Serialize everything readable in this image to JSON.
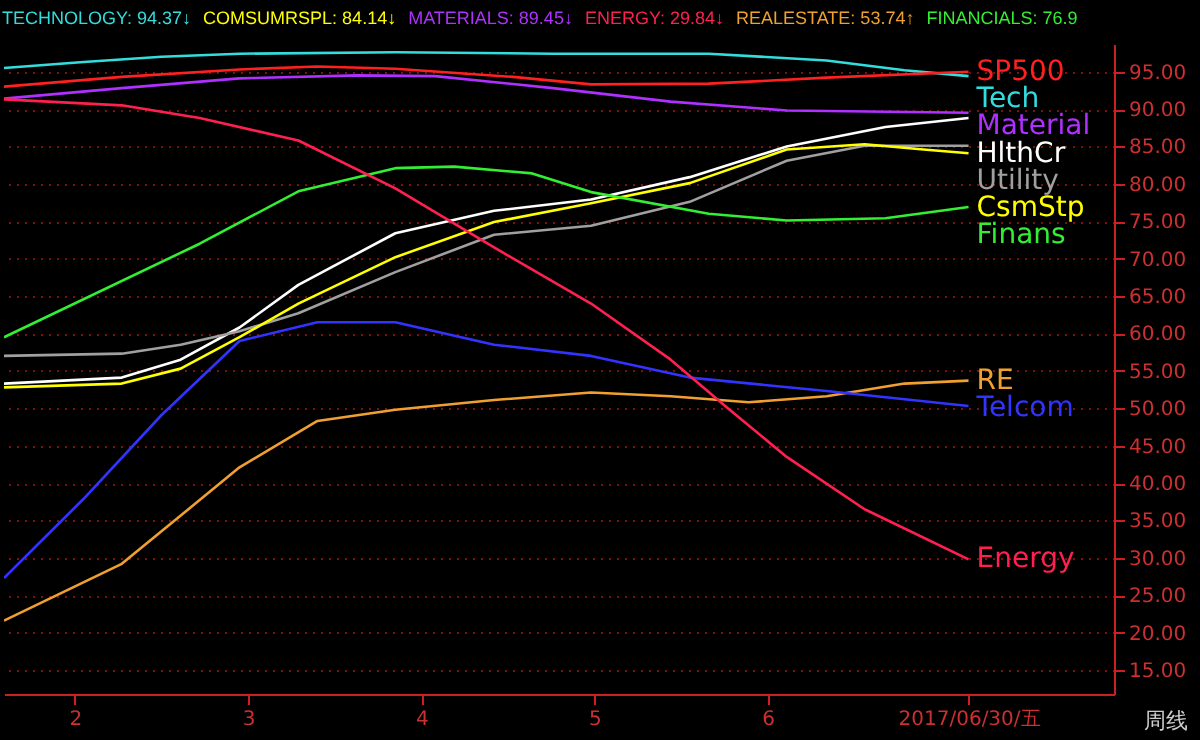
{
  "chart_data": {
    "type": "line",
    "grid": "y",
    "marker": "none",
    "xlim": [
      1.59,
      8.0
    ],
    "xticks": [
      2,
      3,
      4,
      5,
      6,
      {
        "value": 7.16,
        "label": "2017/06/30/五"
      }
    ],
    "ylim": [
      11.8,
      98.7
    ],
    "yticks": [
      {
        "value": 15,
        "label": "15.00"
      },
      {
        "value": 20,
        "label": "20.00"
      },
      {
        "value": 25,
        "label": "25.00"
      },
      {
        "value": 30,
        "label": "30.00"
      },
      {
        "value": 35,
        "label": "35.00"
      },
      {
        "value": 40,
        "label": "40.00"
      },
      {
        "value": 45,
        "label": "45.00"
      },
      {
        "value": 50,
        "label": "50.00"
      },
      {
        "value": 55,
        "label": "55.00"
      },
      {
        "value": 60,
        "label": "60.00"
      },
      {
        "value": 65,
        "label": "65.00"
      },
      {
        "value": 70,
        "label": "70.00"
      },
      {
        "value": 75,
        "label": "75.00"
      },
      {
        "value": 80,
        "label": "80.00"
      },
      {
        "value": 85,
        "label": "85.00"
      },
      {
        "value": 90,
        "label": "90.00"
      },
      {
        "value": 95,
        "label": "95.00"
      }
    ],
    "annotations": [
      "TECHNOLOGY: 94.37↓",
      "COMSUMRSPL: 84.14↓",
      "MATERIALS: 89.45↓",
      "ENERGY: 29.84↓",
      "REALESTATE: 53.74↑",
      "FINANCIALS: 76.9",
      "周线"
    ],
    "series": [
      {
        "name": "Tech",
        "color": "#33dddd",
        "x": [
          1.59,
          2.05,
          2.5,
          2.95,
          3.85,
          4.76,
          5.66,
          6.34,
          6.79,
          7.16
        ],
        "values": [
          95.5,
          96.3,
          97.0,
          97.4,
          97.6,
          97.4,
          97.4,
          96.5,
          95.2,
          94.4
        ]
      },
      {
        "name": "SP500",
        "color": "#ff2020",
        "x": [
          1.59,
          2.27,
          2.95,
          3.4,
          3.85,
          4.53,
          4.98,
          5.66,
          6.34,
          7.16
        ],
        "values": [
          93,
          94.3,
          95.3,
          95.7,
          95.4,
          94.3,
          93.3,
          93.4,
          94.2,
          95
        ]
      },
      {
        "name": "Material",
        "color": "#b030ff",
        "x": [
          1.59,
          2.27,
          2.95,
          3.63,
          4.08,
          4.76,
          5.44,
          6.11,
          7.16
        ],
        "values": [
          91.4,
          92.8,
          94.1,
          94.5,
          94.4,
          92.8,
          91.0,
          89.8,
          89.5
        ]
      },
      {
        "name": "HlthCr",
        "color": "#ffffff",
        "x": [
          1.59,
          2.27,
          2.61,
          2.95,
          3.29,
          3.85,
          4.42,
          4.98,
          5.55,
          6.11,
          6.68,
          7.16
        ],
        "values": [
          53.3,
          54.1,
          56.5,
          60.8,
          66.5,
          73.4,
          76.4,
          77.9,
          80.9,
          85,
          87.6,
          88.8
        ]
      },
      {
        "name": "Utility",
        "color": "#a0a0a0",
        "x": [
          1.59,
          2.27,
          2.61,
          2.95,
          3.29,
          3.85,
          4.42,
          4.98,
          5.55,
          6.11,
          6.56,
          7.16
        ],
        "values": [
          57,
          57.3,
          58.5,
          60.3,
          62.7,
          68.2,
          73.2,
          74.4,
          77.6,
          83.1,
          85.1,
          85.1
        ]
      },
      {
        "name": "CsmStp",
        "color": "#ffff00",
        "x": [
          1.59,
          2.27,
          2.61,
          2.95,
          3.29,
          3.85,
          4.42,
          4.98,
          5.55,
          6.11,
          6.56,
          6.9,
          7.16
        ],
        "values": [
          52.8,
          53.3,
          55.3,
          59.5,
          64,
          70.2,
          74.9,
          77.4,
          80.1,
          84.6,
          85.3,
          84.6,
          84.1
        ]
      },
      {
        "name": "Finans",
        "color": "#33ee33",
        "x": [
          1.59,
          2.72,
          3.29,
          3.85,
          4.19,
          4.64,
          4.98,
          5.66,
          6.11,
          6.68,
          7.16
        ],
        "values": [
          59.5,
          72,
          79,
          82.1,
          82.3,
          81.4,
          78.9,
          76,
          75.1,
          75.4,
          76.9
        ]
      },
      {
        "name": "RE",
        "color": "#f0a030",
        "x": [
          1.59,
          2.27,
          2.95,
          3.4,
          3.85,
          4.42,
          4.98,
          5.44,
          5.89,
          6.34,
          6.79,
          7.16
        ],
        "values": [
          21.6,
          29.2,
          42.1,
          48.3,
          49.8,
          51.1,
          52.1,
          51.6,
          50.8,
          51.6,
          53.3,
          53.7
        ]
      },
      {
        "name": "Telcom",
        "color": "#3333ff",
        "x": [
          1.59,
          2.05,
          2.5,
          2.95,
          3.4,
          3.85,
          4.42,
          4.98,
          5.55,
          6.34,
          7.16
        ],
        "values": [
          27.3,
          37.9,
          49.1,
          59,
          61.5,
          61.5,
          58.5,
          57,
          54.1,
          52.3,
          50.3
        ]
      },
      {
        "name": "Energy",
        "color": "#ff2050",
        "x": [
          1.59,
          2.27,
          2.72,
          3.29,
          3.85,
          4.42,
          4.98,
          5.44,
          5.77,
          6.11,
          6.56,
          7.16
        ],
        "values": [
          91.3,
          90.5,
          88.8,
          85.8,
          79.4,
          71.5,
          64,
          56.5,
          50,
          43.5,
          36.5,
          29.8
        ]
      }
    ]
  }
}
